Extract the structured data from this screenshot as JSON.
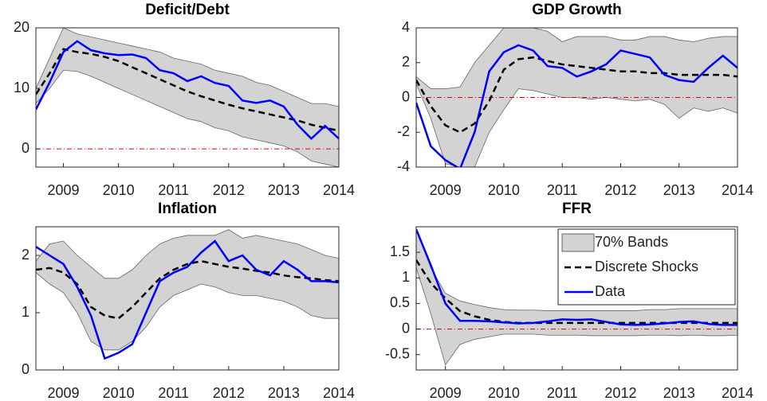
{
  "chart_data": [
    {
      "type": "line",
      "title": "Deficit/Debt",
      "x": [
        2008.5,
        2008.75,
        2009,
        2009.25,
        2009.5,
        2009.75,
        2010,
        2010.25,
        2010.5,
        2010.75,
        2011,
        2011.25,
        2011.5,
        2011.75,
        2012,
        2012.25,
        2012.5,
        2012.75,
        2013,
        2013.25,
        2013.5,
        2013.75,
        2014
      ],
      "xlim": [
        2008.5,
        2014
      ],
      "xticks": [
        2009,
        2010,
        2011,
        2012,
        2013,
        2014
      ],
      "ylim": [
        -3,
        20
      ],
      "yticks": [
        0,
        10,
        20
      ],
      "reference_line": {
        "value": 0,
        "color": "#dd0000"
      },
      "band": {
        "color": "#d3d3d3",
        "upper": [
          10,
          15,
          20,
          19,
          18.5,
          18,
          17.5,
          17,
          16.5,
          16,
          15,
          14.5,
          14,
          13,
          12.5,
          12,
          11,
          10.5,
          9.5,
          8.5,
          7.5,
          7.5,
          7
        ],
        "lower": [
          7.5,
          10,
          13,
          12.8,
          12,
          11,
          10,
          9,
          8,
          7,
          6,
          5,
          4.5,
          3.5,
          3,
          2,
          1.5,
          1,
          0.5,
          -0.5,
          -2,
          -2.5,
          -3
        ]
      },
      "series": [
        {
          "color": "#000000",
          "style": "dashed",
          "values": [
            9,
            12.5,
            16.5,
            16,
            15.7,
            15.2,
            14.5,
            13.5,
            12.5,
            11.5,
            10.5,
            9.5,
            8.7,
            8,
            7.3,
            6.7,
            6.2,
            5.7,
            5.2,
            4.7,
            4,
            3.5,
            3
          ]
        },
        {
          "color": "#0000ff",
          "style": "solid",
          "values": [
            6.5,
            11,
            16,
            17.8,
            16.3,
            15.8,
            15.5,
            15.6,
            15,
            13,
            12.5,
            11.2,
            12,
            10.9,
            10.4,
            8,
            7.6,
            8,
            7,
            4,
            1.7,
            3.8,
            1.7
          ]
        }
      ]
    },
    {
      "type": "line",
      "title": "GDP Growth",
      "x": [
        2008.5,
        2008.75,
        2009,
        2009.25,
        2009.5,
        2009.75,
        2010,
        2010.25,
        2010.5,
        2010.75,
        2011,
        2011.25,
        2011.5,
        2011.75,
        2012,
        2012.25,
        2012.5,
        2012.75,
        2013,
        2013.25,
        2013.5,
        2013.75,
        2014
      ],
      "xlim": [
        2008.5,
        2014
      ],
      "xticks": [
        2009,
        2010,
        2011,
        2012,
        2013,
        2014
      ],
      "ylim": [
        -4,
        4
      ],
      "yticks": [
        -4,
        -2,
        0,
        2,
        4
      ],
      "reference_line": {
        "value": 0,
        "color": "#dd0000"
      },
      "band": {
        "color": "#d3d3d3",
        "upper": [
          1.2,
          0.5,
          0.5,
          0.6,
          2,
          3,
          4,
          4,
          4,
          3.8,
          3.2,
          3.5,
          3.5,
          3.5,
          3.3,
          3.3,
          3.5,
          3.5,
          3.3,
          3.2,
          3.4,
          3.5,
          3.5
        ],
        "lower": [
          0.8,
          -1.2,
          -3.8,
          -4,
          -4,
          -2,
          -0.7,
          0.5,
          0.4,
          0.2,
          0,
          0,
          -0.1,
          0,
          -0.1,
          -0.2,
          -0.1,
          -0.4,
          -1.2,
          -0.6,
          -0.8,
          -0.6,
          -0.9
        ]
      },
      "series": [
        {
          "color": "#000000",
          "style": "dashed",
          "values": [
            1,
            -0.5,
            -1.6,
            -2,
            -1.5,
            -0.2,
            1.6,
            2.2,
            2.3,
            2.1,
            1.9,
            1.8,
            1.7,
            1.6,
            1.5,
            1.5,
            1.4,
            1.4,
            1.3,
            1.3,
            1.3,
            1.3,
            1.2
          ]
        },
        {
          "color": "#0000ff",
          "style": "solid",
          "values": [
            -0.3,
            -2.8,
            -3.6,
            -4.1,
            -2,
            1.5,
            2.6,
            3,
            2.7,
            1.8,
            1.7,
            1.2,
            1.5,
            1.9,
            2.7,
            2.5,
            2.3,
            1.3,
            1,
            0.9,
            1.7,
            2.4,
            1.7
          ]
        }
      ]
    },
    {
      "type": "line",
      "title": "Inflation",
      "x": [
        2008.5,
        2008.75,
        2009,
        2009.25,
        2009.5,
        2009.75,
        2010,
        2010.25,
        2010.5,
        2010.75,
        2011,
        2011.25,
        2011.5,
        2011.75,
        2012,
        2012.25,
        2012.5,
        2012.75,
        2013,
        2013.25,
        2013.5,
        2013.75,
        2014
      ],
      "xlim": [
        2008.5,
        2014
      ],
      "xticks": [
        2009,
        2010,
        2011,
        2012,
        2013,
        2014
      ],
      "ylim": [
        0,
        2.5
      ],
      "yticks": [
        0,
        1,
        2
      ],
      "reference_line": {
        "value": 0,
        "color": "#dd0000"
      },
      "band": {
        "color": "#d3d3d3",
        "upper": [
          1.9,
          2.2,
          2.25,
          2,
          1.8,
          1.6,
          1.6,
          1.75,
          2,
          2.2,
          2.3,
          2.35,
          2.35,
          2.35,
          2.45,
          2.3,
          2.35,
          2.3,
          2.25,
          2.2,
          2.1,
          2,
          1.95
        ],
        "lower": [
          1.7,
          1.5,
          1.35,
          1,
          0.5,
          0.35,
          0.35,
          0.5,
          0.75,
          1.1,
          1.3,
          1.4,
          1.5,
          1.45,
          1.35,
          1.3,
          1.3,
          1.25,
          1.2,
          1.1,
          0.95,
          0.9,
          0.9
        ]
      },
      "series": [
        {
          "color": "#000000",
          "style": "dashed",
          "values": [
            1.75,
            1.78,
            1.7,
            1.5,
            1.1,
            0.95,
            0.9,
            1.1,
            1.35,
            1.6,
            1.75,
            1.85,
            1.9,
            1.85,
            1.8,
            1.77,
            1.73,
            1.7,
            1.65,
            1.62,
            1.6,
            1.57,
            1.55
          ]
        },
        {
          "color": "#0000ff",
          "style": "solid",
          "values": [
            2.15,
            2,
            1.85,
            1.45,
            0.95,
            0.2,
            0.3,
            0.45,
            1,
            1.55,
            1.7,
            1.8,
            2.05,
            2.25,
            1.9,
            2,
            1.75,
            1.65,
            1.9,
            1.75,
            1.55,
            1.55,
            1.53
          ]
        }
      ]
    },
    {
      "type": "line",
      "title": "FFR",
      "x": [
        2008.5,
        2008.75,
        2009,
        2009.25,
        2009.5,
        2009.75,
        2010,
        2010.25,
        2010.5,
        2010.75,
        2011,
        2011.25,
        2011.5,
        2011.75,
        2012,
        2012.25,
        2012.5,
        2012.75,
        2013,
        2013.25,
        2013.5,
        2013.75,
        2014
      ],
      "xlim": [
        2008.5,
        2014
      ],
      "xticks": [
        2009,
        2010,
        2011,
        2012,
        2013,
        2014
      ],
      "ylim": [
        -0.8,
        2
      ],
      "yticks": [
        -0.5,
        0,
        0.5,
        1,
        1.5
      ],
      "reference_line": {
        "value": 0,
        "color": "#dd0000"
      },
      "legend": "upper right",
      "band": {
        "name": "70% Bands",
        "color": "#d3d3d3",
        "upper": [
          1.95,
          1.2,
          0.7,
          0.55,
          0.48,
          0.42,
          0.38,
          0.37,
          0.37,
          0.36,
          0.36,
          0.36,
          0.36,
          0.36,
          0.36,
          0.36,
          0.38,
          0.38,
          0.4,
          0.4,
          0.4,
          0.4,
          0.4
        ],
        "lower": [
          1.2,
          0.3,
          -0.7,
          -0.3,
          -0.2,
          -0.15,
          -0.1,
          -0.1,
          -0.1,
          -0.12,
          -0.12,
          -0.12,
          -0.13,
          -0.13,
          -0.13,
          -0.13,
          -0.12,
          -0.12,
          -0.13,
          -0.12,
          -0.13,
          -0.13,
          -0.12
        ]
      },
      "series": [
        {
          "name": "Discrete Shocks",
          "color": "#000000",
          "style": "dashed",
          "values": [
            1.35,
            0.9,
            0.6,
            0.35,
            0.25,
            0.18,
            0.14,
            0.12,
            0.12,
            0.12,
            0.12,
            0.12,
            0.12,
            0.12,
            0.12,
            0.12,
            0.12,
            0.12,
            0.12,
            0.12,
            0.12,
            0.12,
            0.12
          ]
        },
        {
          "name": "Data",
          "color": "#0000ff",
          "style": "solid",
          "values": [
            1.95,
            1.25,
            0.5,
            0.16,
            0.16,
            0.15,
            0.13,
            0.11,
            0.12,
            0.15,
            0.19,
            0.18,
            0.19,
            0.14,
            0.09,
            0.08,
            0.09,
            0.11,
            0.14,
            0.15,
            0.1,
            0.08,
            0.08
          ]
        }
      ]
    }
  ]
}
